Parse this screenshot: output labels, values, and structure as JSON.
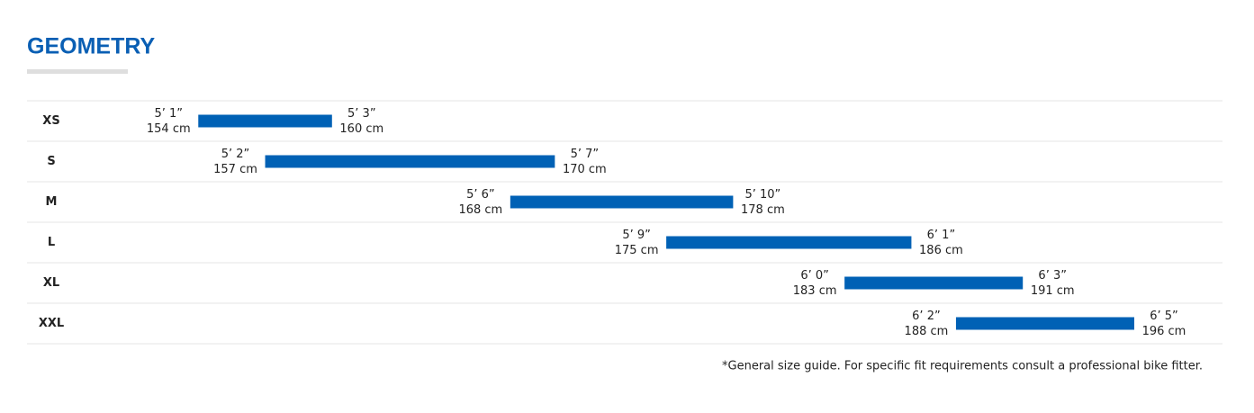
{
  "chart_data": {
    "type": "range-bar",
    "title": "GEOMETRY",
    "categories": [
      "XS",
      "S",
      "M",
      "L",
      "XL",
      "XXL"
    ],
    "low": {
      "values": [
        154,
        157,
        168,
        175,
        183,
        188
      ],
      "value_labels": [
        "154 cm",
        "157 cm",
        "168 cm",
        "175 cm",
        "183 cm",
        "188 cm"
      ],
      "imperial_labels": [
        "5’ 1”",
        "5’ 2”",
        "5’ 6”",
        "5’ 9”",
        "6’ 0”",
        "6’ 2”"
      ]
    },
    "high": {
      "values": [
        160,
        170,
        178,
        186,
        191,
        196
      ],
      "value_labels": [
        "160 cm",
        "170 cm",
        "178 cm",
        "186 cm",
        "191 cm",
        "196 cm"
      ],
      "imperial_labels": [
        "5’ 3”",
        "5’ 7”",
        "5’ 10”",
        "6’ 1”",
        "6’ 3”",
        "6’ 5”"
      ]
    },
    "color": "#0061b5",
    "xlim": [
      151,
      200
    ],
    "note": "*General size guide. For specific fit requirements consult a professional bike fitter."
  }
}
